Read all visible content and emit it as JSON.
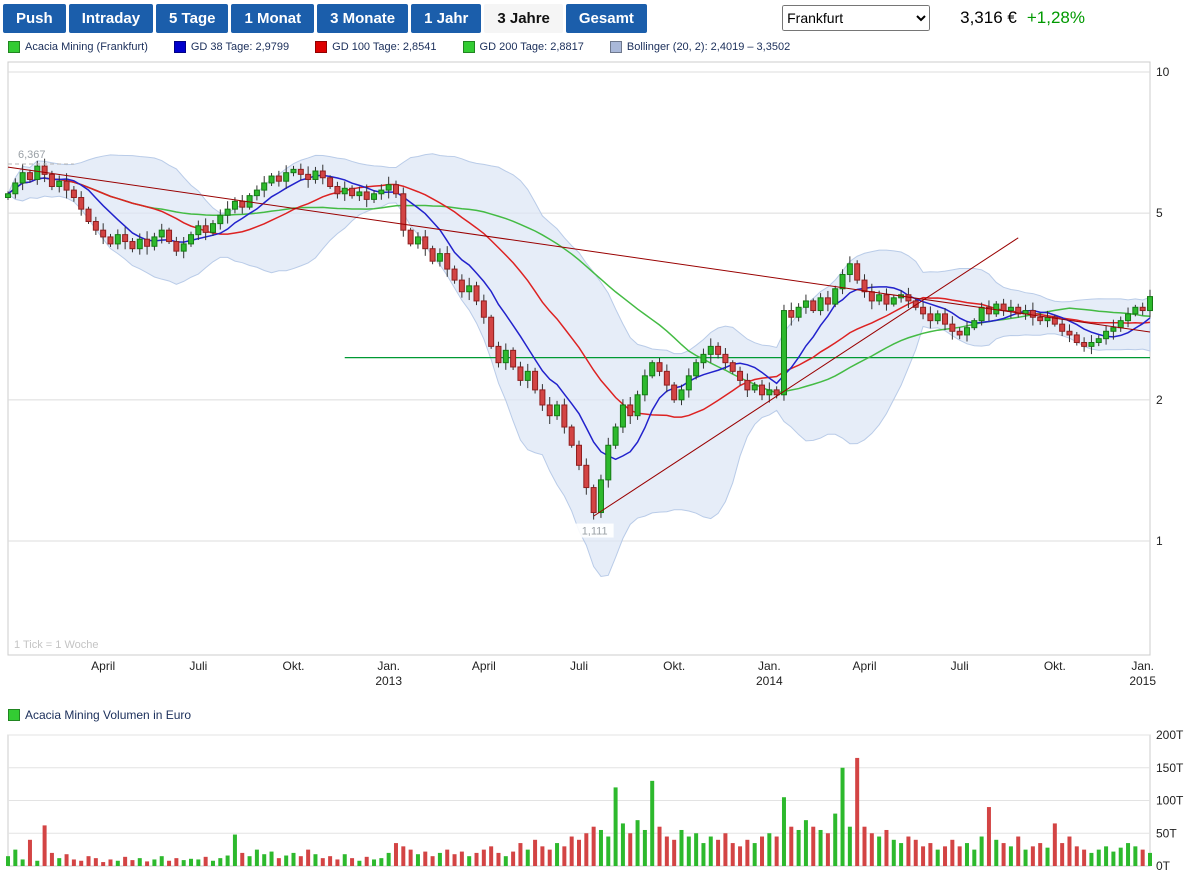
{
  "toolbar": {
    "buttons": [
      {
        "label": "Push",
        "active": false
      },
      {
        "label": "Intraday",
        "active": false
      },
      {
        "label": "5 Tage",
        "active": false
      },
      {
        "label": "1 Monat",
        "active": false
      },
      {
        "label": "3 Monate",
        "active": false
      },
      {
        "label": "1 Jahr",
        "active": false
      },
      {
        "label": "3 Jahre",
        "active": true
      },
      {
        "label": "Gesamt",
        "active": false
      }
    ],
    "exchange_select": {
      "value": "Frankfurt",
      "options": [
        "Frankfurt"
      ]
    },
    "price": "3,316 €",
    "change": "+1,28%",
    "change_color": "#009900",
    "button_bg": "#1b5eab"
  },
  "legend": {
    "items": [
      {
        "swatch": "#33cc33",
        "label": "Acacia Mining (Frankfurt)"
      },
      {
        "swatch": "#0000cc",
        "label": "GD 38 Tage: 2,9799"
      },
      {
        "swatch": "#dd0000",
        "label": "GD 100 Tage: 2,8541"
      },
      {
        "swatch": "#33cc33",
        "label": "GD 200 Tage: 2,8817"
      },
      {
        "swatch": "#a9b8d9",
        "label": "Bollinger (20, 2): 2,4019 – 3,3502"
      }
    ]
  },
  "volume_legend": {
    "swatch": "#33cc33",
    "label": "Acacia Mining Volumen in Euro"
  },
  "chart_data": {
    "type": "candlestick+volume",
    "title": "Acacia Mining (Frankfurt), 3 Jahre, weekly",
    "tick_note": "1 Tick = 1 Woche",
    "y_axis": {
      "scale": "log",
      "ticks": [
        1,
        2,
        5,
        10
      ]
    },
    "volume_axis": {
      "ticks": [
        "0T",
        "50T",
        "100T",
        "150T",
        "200T"
      ],
      "max": 200
    },
    "x_labels": [
      {
        "week": 13,
        "label": "April"
      },
      {
        "week": 26,
        "label": "Juli"
      },
      {
        "week": 39,
        "label": "Okt."
      },
      {
        "week": 52,
        "label": "Jan.",
        "year": "2013"
      },
      {
        "week": 65,
        "label": "April"
      },
      {
        "week": 78,
        "label": "Juli"
      },
      {
        "week": 91,
        "label": "Okt."
      },
      {
        "week": 104,
        "label": "Jan.",
        "year": "2014"
      },
      {
        "week": 117,
        "label": "April"
      },
      {
        "week": 130,
        "label": "Juli"
      },
      {
        "week": 143,
        "label": "Okt."
      },
      {
        "week": 155,
        "label": "Jan.",
        "year": "2015"
      }
    ],
    "annotations": {
      "high": {
        "week": 2,
        "value": 6.367,
        "label": "6,367"
      },
      "low": {
        "week": 80,
        "value": 1.111,
        "label": "1,111"
      }
    },
    "trendlines": [
      {
        "from": [
          0,
          6.27
        ],
        "to": [
          156,
          2.79
        ],
        "color": "#990000"
      },
      {
        "from": [
          80,
          1.13
        ],
        "to": [
          138,
          4.43
        ],
        "color": "#990000"
      }
    ],
    "support_line": {
      "value": 2.46,
      "from_week": 46,
      "to_week": 156,
      "color": "#009933"
    },
    "indicators": {
      "gd38": {
        "window": 8,
        "color": "#2222cc"
      },
      "gd100": {
        "window": 20,
        "color": "#dd2222"
      },
      "gd200": {
        "window": 40,
        "color": "#44bb44"
      },
      "bollinger": {
        "window": 20,
        "mult": 2,
        "fill": "#dce6f5",
        "edge": "#b3c6e6"
      }
    },
    "candle_up_color": "#2db92d",
    "candle_down_color": "#d34444",
    "first_open": 5.4,
    "weekly_closes": [
      5.5,
      5.8,
      6.1,
      5.9,
      6.3,
      6.05,
      5.7,
      5.85,
      5.6,
      5.4,
      5.1,
      4.8,
      4.6,
      4.45,
      4.3,
      4.5,
      4.35,
      4.2,
      4.4,
      4.25,
      4.45,
      4.6,
      4.35,
      4.15,
      4.3,
      4.5,
      4.7,
      4.55,
      4.75,
      4.95,
      5.1,
      5.3,
      5.15,
      5.45,
      5.6,
      5.8,
      6.0,
      5.85,
      6.1,
      6.2,
      6.05,
      5.9,
      6.15,
      5.95,
      5.7,
      5.5,
      5.65,
      5.45,
      5.55,
      5.35,
      5.5,
      5.6,
      5.75,
      5.5,
      4.6,
      4.3,
      4.45,
      4.2,
      3.95,
      4.1,
      3.8,
      3.6,
      3.4,
      3.5,
      3.25,
      3.0,
      2.6,
      2.4,
      2.55,
      2.35,
      2.2,
      2.3,
      2.1,
      1.95,
      1.85,
      1.95,
      1.75,
      1.6,
      1.45,
      1.3,
      1.15,
      1.35,
      1.6,
      1.75,
      1.95,
      1.85,
      2.05,
      2.25,
      2.4,
      2.3,
      2.15,
      2.0,
      2.1,
      2.25,
      2.4,
      2.5,
      2.6,
      2.5,
      2.4,
      2.3,
      2.2,
      2.1,
      2.15,
      2.05,
      2.1,
      2.05,
      3.1,
      3.0,
      3.15,
      3.25,
      3.1,
      3.3,
      3.2,
      3.45,
      3.7,
      3.9,
      3.6,
      3.4,
      3.25,
      3.35,
      3.2,
      3.3,
      3.35,
      3.25,
      3.15,
      3.05,
      2.95,
      3.05,
      2.9,
      2.8,
      2.75,
      2.85,
      2.95,
      3.15,
      3.05,
      3.2,
      3.1,
      3.15,
      3.05,
      3.1,
      3.0,
      2.95,
      3.0,
      2.9,
      2.8,
      2.75,
      2.65,
      2.6,
      2.65,
      2.7,
      2.8,
      2.85,
      2.95,
      3.05,
      3.15,
      3.1,
      3.32
    ],
    "volumes_T": [
      15,
      25,
      10,
      40,
      8,
      62,
      20,
      12,
      18,
      10,
      8,
      15,
      12,
      6,
      10,
      8,
      14,
      9,
      12,
      7,
      10,
      15,
      8,
      12,
      9,
      11,
      10,
      14,
      8,
      12,
      16,
      48,
      20,
      15,
      25,
      18,
      22,
      12,
      16,
      20,
      15,
      25,
      18,
      12,
      15,
      10,
      18,
      12,
      8,
      14,
      10,
      12,
      20,
      35,
      30,
      25,
      18,
      22,
      15,
      20,
      25,
      18,
      22,
      15,
      20,
      25,
      30,
      20,
      15,
      22,
      35,
      25,
      40,
      30,
      25,
      35,
      30,
      45,
      40,
      50,
      60,
      55,
      45,
      120,
      65,
      50,
      70,
      55,
      130,
      60,
      45,
      40,
      55,
      45,
      50,
      35,
      45,
      40,
      50,
      35,
      30,
      40,
      35,
      45,
      50,
      45,
      105,
      60,
      55,
      70,
      60,
      55,
      50,
      80,
      150,
      60,
      165,
      60,
      50,
      45,
      55,
      40,
      35,
      45,
      40,
      30,
      35,
      25,
      30,
      40,
      30,
      35,
      25,
      45,
      90,
      40,
      35,
      30,
      45,
      25,
      30,
      35,
      28,
      65,
      35,
      45,
      30,
      25,
      20,
      25,
      30,
      22,
      28,
      35,
      30,
      25,
      20
    ]
  }
}
